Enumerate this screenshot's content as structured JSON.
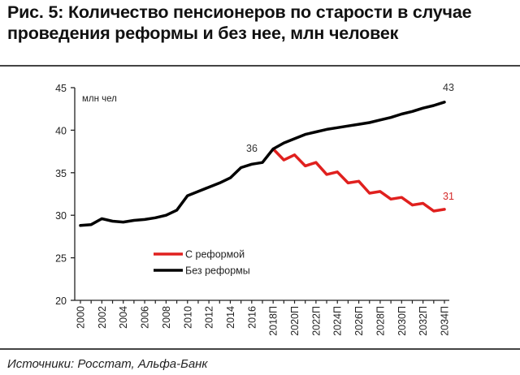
{
  "title": "Рис. 5: Количество пенсионеров по старости в случае проведения реформы и без нее, млн человек",
  "source": "Источники: Росстат, Альфа-Банк",
  "colors": {
    "with_reform": "#e0201e",
    "without_reform": "#000000",
    "axis": "#222222",
    "rule": "#444444"
  },
  "chart_data": {
    "type": "line",
    "title": "Количество пенсионеров по старости в случае проведения реформы и без нее, млн человек",
    "xlabel": "",
    "ylabel": "млн чел",
    "ylim": [
      20,
      45
    ],
    "yticks": [
      20,
      25,
      30,
      35,
      40,
      45
    ],
    "grid": false,
    "legend_position": "inside-left-middle",
    "x": [
      "2000",
      "2001",
      "2002",
      "2003",
      "2004",
      "2005",
      "2006",
      "2007",
      "2008",
      "2009",
      "2010",
      "2011",
      "2012",
      "2013",
      "2014",
      "2015",
      "2016",
      "2017",
      "2018П",
      "2019П",
      "2020П",
      "2021П",
      "2022П",
      "2023П",
      "2024П",
      "2025П",
      "2026П",
      "2027П",
      "2028П",
      "2029П",
      "2030П",
      "2031П",
      "2032П",
      "2033П",
      "2034П"
    ],
    "xtick_labels": [
      "2000",
      "2002",
      "2004",
      "2006",
      "2008",
      "2010",
      "2012",
      "2014",
      "2016",
      "2018П",
      "2020П",
      "2022П",
      "2024П",
      "2026П",
      "2028П",
      "2030П",
      "2032П",
      "2034П"
    ],
    "series": [
      {
        "name": "С реформой",
        "color": "#e0201e",
        "values": [
          null,
          null,
          null,
          null,
          null,
          null,
          null,
          null,
          null,
          null,
          null,
          null,
          null,
          null,
          null,
          null,
          null,
          null,
          37.8,
          36.5,
          37.1,
          35.8,
          36.2,
          34.8,
          35.1,
          33.8,
          34.0,
          32.6,
          32.8,
          31.9,
          32.1,
          31.2,
          31.4,
          30.5,
          30.7
        ]
      },
      {
        "name": "Без реформы",
        "color": "#000000",
        "values": [
          28.8,
          28.9,
          29.6,
          29.3,
          29.2,
          29.4,
          29.5,
          29.7,
          30.0,
          30.6,
          32.3,
          32.8,
          33.3,
          33.8,
          34.4,
          35.6,
          36.0,
          36.2,
          37.8,
          38.5,
          39.0,
          39.5,
          39.8,
          40.1,
          40.3,
          40.5,
          40.7,
          40.9,
          41.2,
          41.5,
          41.9,
          42.2,
          42.6,
          42.9,
          43.3
        ]
      }
    ],
    "annotations": [
      {
        "text": "36",
        "x": "2017",
        "series": "Без реформы"
      },
      {
        "text": "43",
        "x": "2034П",
        "series": "Без реформы"
      },
      {
        "text": "31",
        "x": "2034П",
        "series": "С реформой"
      }
    ]
  },
  "legend": [
    {
      "label": "С реформой",
      "color": "#e0201e"
    },
    {
      "label": "Без реформы",
      "color": "#000000"
    }
  ],
  "axis": {
    "unit": "млн чел"
  }
}
